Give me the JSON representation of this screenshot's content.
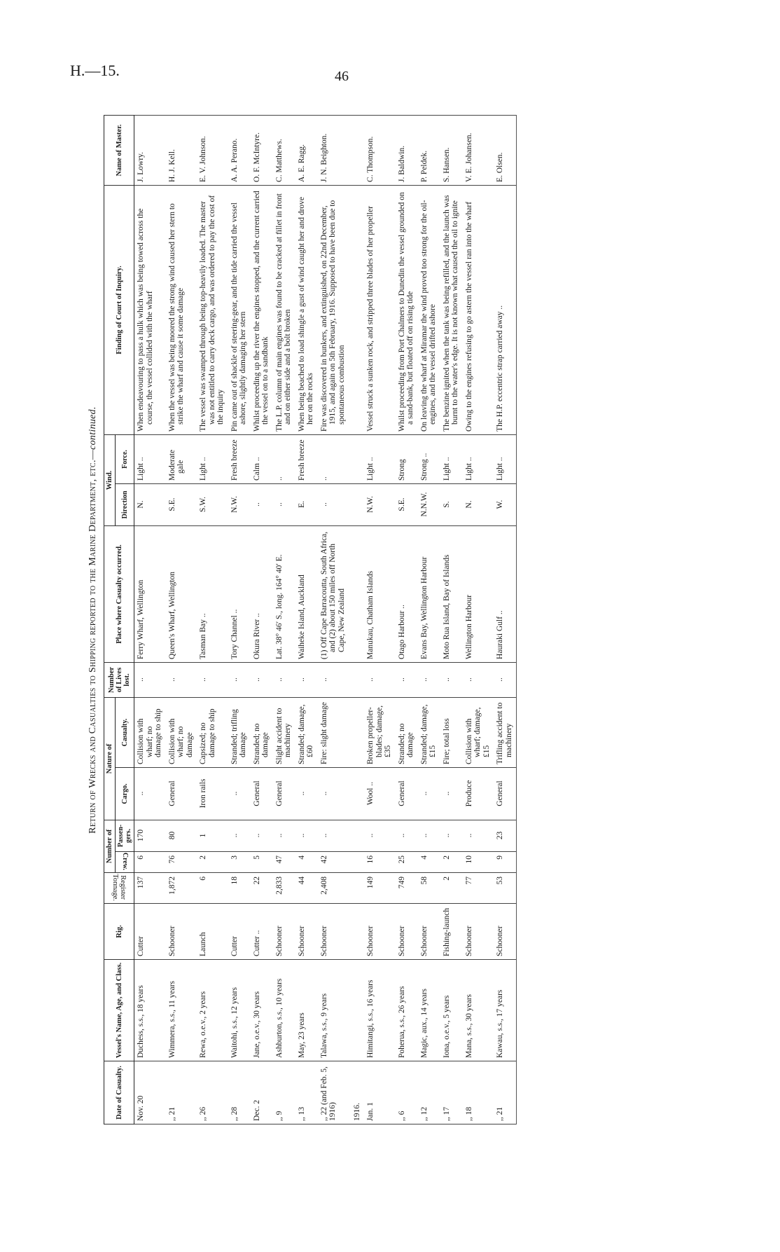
{
  "page": {
    "code": "H.—15.",
    "number": "46"
  },
  "title": {
    "main": "Return of Wrecks and Casualties to Shipping reported to the Marine Department, etc.—",
    "suffix": "continued."
  },
  "headers": {
    "date": "Date of Casualty.",
    "vessel": "Vessel's Name, Age, and Class.",
    "rig": "Rig.",
    "tonnage": "Register Tonnage.",
    "number_of": "Number of",
    "crew": "Crew.",
    "passengers": "Passen-gers.",
    "nature_of": "Nature of",
    "cargo": "Cargo.",
    "casualty": "Casualty.",
    "lives": "Number of Lives lost.",
    "place": "Place where Casualty occurred.",
    "wind": "Wind.",
    "direction": "Direction",
    "force": "Force.",
    "finding": "Finding of Court of Inquiry.",
    "master": "Name of Master."
  },
  "rows": [
    {
      "date": "Nov. 20",
      "vessel": "Duchess, s.s., 18 years",
      "rig": "Cutter",
      "tonnage": "137",
      "crew": "6",
      "passengers": "170",
      "cargo": "..",
      "casualty": "Collision with wharf; no damage to ship",
      "lives": "..",
      "place": "Ferry Wharf, Wellington",
      "direction": "N.",
      "force": "Light ..",
      "finding": "When endeavouring to pass a hulk which was being towed across the course, the vessel collided with the wharf",
      "master": "J. Lowry."
    },
    {
      "date": ",, 21",
      "vessel": "Wimmera, s.s., 11 years",
      "rig": "Schooner",
      "tonnage": "1,872",
      "crew": "76",
      "passengers": "80",
      "cargo": "General",
      "casualty": "Collision with wharf; no damage",
      "lives": "..",
      "place": "Queen's Wharf, Wellington",
      "direction": "S.E.",
      "force": "Moderate gale",
      "finding": "When the vessel was being moored the strong wind caused her stern to strike the wharf and cause it some damage",
      "master": "H. J. Kell."
    },
    {
      "date": ",, 26",
      "vessel": "Rewa, o.e.v., 2 years",
      "rig": "Launch",
      "tonnage": "6",
      "crew": "2",
      "passengers": "1",
      "cargo": "Iron rails",
      "casualty": "Capsized; no damage to ship",
      "lives": "..",
      "place": "Tasman Bay ..",
      "direction": "S.W.",
      "force": "Light ..",
      "finding": "The vessel was swamped through being top-heavily loaded. The master was not entitled to carry deck cargo, and was ordered to pay the cost of the inquiry",
      "master": "E. V. Johnson."
    },
    {
      "date": ",, 28",
      "vessel": "Waitohi, s.s., 12 years",
      "rig": "Cutter",
      "tonnage": "18",
      "crew": "3",
      "passengers": "..",
      "cargo": "..",
      "casualty": "Stranded; trifling damage",
      "lives": "..",
      "place": "Tory Channel ..",
      "direction": "N.W.",
      "force": "Fresh breeze",
      "finding": "Pin came out of shackle of steering-gear, and the tide carried the vessel ashore, slightly damaging her stern",
      "master": "A. A. Perano."
    },
    {
      "date": "Dec. 2",
      "vessel": "Jane, o.e.v., 30 years",
      "rig": "Cutter ..",
      "tonnage": "22",
      "crew": "5",
      "passengers": "..",
      "cargo": "General",
      "casualty": "Stranded; no damage",
      "lives": "..",
      "place": "Okura River ..",
      "direction": "..",
      "force": "Calm ..",
      "finding": "Whilst proceeding up the river the engines stopped, and the current carried the vessel on to a sandbank",
      "master": "O. F. McIntyre."
    },
    {
      "date": ",, 9",
      "vessel": "Ashburton, s.s., 10 years",
      "rig": "Schooner",
      "tonnage": "2,833",
      "crew": "47",
      "passengers": "..",
      "cargo": "General",
      "casualty": "Slight accident to machinery",
      "lives": "..",
      "place": "Lat. 38° 46′ S., long. 164° 40′ E.",
      "direction": "..",
      "force": "..",
      "finding": "The L.P. column of main engines was found to be cracked at fillet in front and on either side and a bolt broken",
      "master": "C. Matthews."
    },
    {
      "date": ",, 13",
      "vessel": "May, 23 years",
      "rig": "Schooner",
      "tonnage": "44",
      "crew": "4",
      "passengers": "..",
      "cargo": "..",
      "casualty": "Stranded; damage, £60",
      "lives": "..",
      "place": "Waiheke Island, Auckland",
      "direction": "E.",
      "force": "Fresh breeze",
      "finding": "When being beached to load shingle a gust of wind caught her and drove her on the rocks",
      "master": "A. E. Ragg."
    },
    {
      "date": ",, 22 (and Feb. 5, 1916)",
      "vessel": "Talawa, s.s., 9 years",
      "rig": "Schooner",
      "tonnage": "2,408",
      "crew": "42",
      "passengers": "..",
      "cargo": "..",
      "casualty": "Fire: slight damage",
      "lives": "..",
      "place": "(1) Off Cape Barracoutta, South Africa, and (2) about 150 miles off North Cape, New Zealand",
      "direction": "..",
      "force": "..",
      "finding": "Fire was discovered in bunkers, and extinguished, on 22nd December, 1915, and again on 5th February, 1916. Supposed to have been due to spontaneous combustion",
      "master": "J. N. Beighton."
    },
    {
      "year": "1916.",
      "date": "Jan. 1",
      "vessel": "Himitangi, s.s., 16 years",
      "rig": "Schooner",
      "tonnage": "149",
      "crew": "16",
      "passengers": "..",
      "cargo": "Wool ..",
      "casualty": "Broken propeller-blades; damage, £35",
      "lives": "..",
      "place": "Manukau, Chatham Islands",
      "direction": "N.W.",
      "force": "Light ..",
      "finding": "Vessel struck a sunken rock, and stripped three blades of her propeller",
      "master": "C. Thompson."
    },
    {
      "date": ",, 6",
      "vessel": "Poherua, s.s., 26 years",
      "rig": "Schooner",
      "tonnage": "749",
      "crew": "25",
      "passengers": "..",
      "cargo": "General",
      "casualty": "Stranded; no damage",
      "lives": "..",
      "place": "Otago Harbour ..",
      "direction": "S.E.",
      "force": "Strong",
      "finding": "Whilst proceeding from Port Chalmers to Dunedin the vessel grounded on a sand-bank, but floated off on rising tide",
      "master": "J. Baldwin."
    },
    {
      "date": ",, 12",
      "vessel": "Magic, aux., 14 years",
      "rig": "Schooner",
      "tonnage": "58",
      "crew": "4",
      "passengers": "..",
      "cargo": "..",
      "casualty": "Stranded; damage, £15",
      "lives": "..",
      "place": "Evans Bay, Wellington Harbour",
      "direction": "N.N.W.",
      "force": "Strong ..",
      "finding": "On leaving the wharf at Miramar the wind proved too strong for the oil-engines, and the vessel drifted ashore",
      "master": "P. Peldek."
    },
    {
      "date": ",, 17",
      "vessel": "Iona, o.e.v., 5 years",
      "rig": "Fishing-launch",
      "tonnage": "2",
      "crew": "2",
      "passengers": "..",
      "cargo": "..",
      "casualty": "Fire; total loss",
      "lives": "..",
      "place": "Moto Rua Island, Bay of Islands",
      "direction": "S.",
      "force": "Light ..",
      "finding": "The benzine ignited when the tank was being refilled, and the launch was burnt to the water's edge. It is not known what caused the oil to ignite",
      "master": "S. Hansen."
    },
    {
      "date": ",, 18",
      "vessel": "Mana, s.s., 30 years",
      "rig": "Schooner",
      "tonnage": "77",
      "crew": "10",
      "passengers": "..",
      "cargo": "Produce",
      "casualty": "Collision with wharf; damage, £15",
      "lives": "..",
      "place": "Wellington Harbour",
      "direction": "N.",
      "force": "Light ..",
      "finding": "Owing to the engines refusing to go astern the vessel ran into the wharf",
      "master": "V. E. Johansen."
    },
    {
      "date": ",, 21",
      "vessel": "Kawau, s.s., 17 years",
      "rig": "Schooner",
      "tonnage": "53",
      "crew": "9",
      "passengers": "23",
      "cargo": "General",
      "casualty": "Trifling accident to machinery",
      "lives": "..",
      "place": "Hauraki Gulf ..",
      "direction": "W.",
      "force": "Light ..",
      "finding": "The H.P. eccentric strap carried away ..",
      "master": "E. Olsen."
    }
  ]
}
